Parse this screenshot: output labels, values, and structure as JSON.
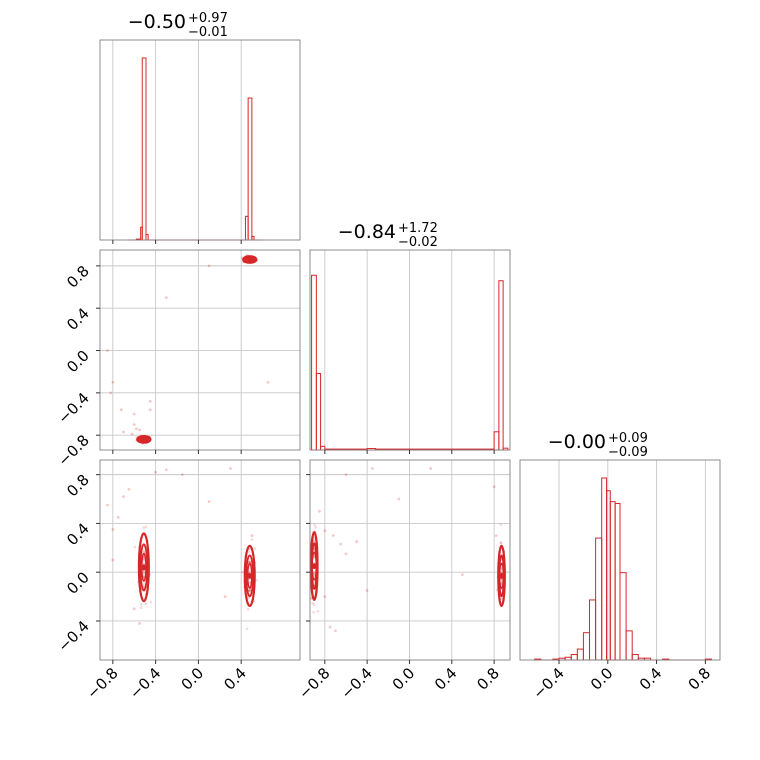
{
  "chart_data": {
    "type": "corner",
    "color": "#d62728",
    "parameters": [
      {
        "title": {
          "main": "−0.50",
          "upper": "+0.97",
          "lower": "−0.01"
        },
        "range": [
          -0.92,
          0.95
        ],
        "ticks": [
          -0.8,
          -0.4,
          0.0,
          0.4
        ],
        "tick_labels": [
          "−0.8",
          "−0.4",
          "0.0",
          "0.4"
        ],
        "hist_bins": [
          {
            "x0": -0.66,
            "x1": -0.62,
            "h": 0.0
          },
          {
            "x0": -0.62,
            "x1": -0.58,
            "h": 0.0
          },
          {
            "x0": -0.58,
            "x1": -0.54,
            "h": 0.005
          },
          {
            "x0": -0.54,
            "x1": -0.525,
            "h": 0.07
          },
          {
            "x0": -0.525,
            "x1": -0.49,
            "h": 1.0
          },
          {
            "x0": -0.49,
            "x1": -0.47,
            "h": 0.03
          },
          {
            "x0": -0.47,
            "x1": 0.44,
            "h": 0.0
          },
          {
            "x0": 0.44,
            "x1": 0.465,
            "h": 0.13
          },
          {
            "x0": 0.465,
            "x1": 0.5,
            "h": 0.78
          },
          {
            "x0": 0.5,
            "x1": 0.52,
            "h": 0.02
          },
          {
            "x0": 0.52,
            "x1": 0.6,
            "h": 0.0
          }
        ]
      },
      {
        "title": {
          "main": "−0.84",
          "upper": "+1.72",
          "lower": "−0.02"
        },
        "range": [
          -0.94,
          0.95
        ],
        "ticks": [
          -0.8,
          -0.4,
          0.0,
          0.4,
          0.8
        ],
        "tick_labels": [
          "−0.8",
          "−0.4",
          "0.0",
          "0.4",
          "0.8"
        ],
        "hist_bins": [
          {
            "x0": -0.925,
            "x1": -0.88,
            "h": 0.96
          },
          {
            "x0": -0.88,
            "x1": -0.84,
            "h": 0.42
          },
          {
            "x0": -0.84,
            "x1": -0.8,
            "h": 0.02
          },
          {
            "x0": -0.8,
            "x1": -0.4,
            "h": 0.005
          },
          {
            "x0": -0.4,
            "x1": -0.32,
            "h": 0.008
          },
          {
            "x0": -0.32,
            "x1": 0.8,
            "h": 0.005
          },
          {
            "x0": 0.8,
            "x1": 0.845,
            "h": 0.1
          },
          {
            "x0": 0.845,
            "x1": 0.885,
            "h": 0.93
          },
          {
            "x0": 0.885,
            "x1": 0.93,
            "h": 0.01
          }
        ]
      },
      {
        "title": {
          "main": "−0.00",
          "upper": "+0.09",
          "lower": "−0.09"
        },
        "range": [
          -0.72,
          0.92
        ],
        "ticks": [
          -0.4,
          0.0,
          0.4,
          0.8
        ],
        "tick_labels": [
          "−0.4",
          "0.0",
          "0.4",
          "0.8"
        ],
        "hist_bins": [
          {
            "x0": -0.6,
            "x1": -0.55,
            "h": 0.005
          },
          {
            "x0": -0.55,
            "x1": -0.45,
            "h": 0.0
          },
          {
            "x0": -0.45,
            "x1": -0.4,
            "h": 0.005
          },
          {
            "x0": -0.4,
            "x1": -0.35,
            "h": 0.01
          },
          {
            "x0": -0.35,
            "x1": -0.3,
            "h": 0.015
          },
          {
            "x0": -0.3,
            "x1": -0.25,
            "h": 0.03
          },
          {
            "x0": -0.25,
            "x1": -0.2,
            "h": 0.06
          },
          {
            "x0": -0.2,
            "x1": -0.15,
            "h": 0.15
          },
          {
            "x0": -0.15,
            "x1": -0.1,
            "h": 0.33
          },
          {
            "x0": -0.1,
            "x1": -0.05,
            "h": 0.67
          },
          {
            "x0": -0.05,
            "x1": -0.01,
            "h": 1.0
          },
          {
            "x0": -0.01,
            "x1": 0.02,
            "h": 0.93
          },
          {
            "x0": 0.02,
            "x1": 0.06,
            "h": 0.87
          },
          {
            "x0": 0.06,
            "x1": 0.1,
            "h": 0.86
          },
          {
            "x0": 0.1,
            "x1": 0.15,
            "h": 0.48
          },
          {
            "x0": 0.15,
            "x1": 0.2,
            "h": 0.16
          },
          {
            "x0": 0.2,
            "x1": 0.25,
            "h": 0.03
          },
          {
            "x0": 0.25,
            "x1": 0.3,
            "h": 0.01
          },
          {
            "x0": 0.3,
            "x1": 0.35,
            "h": 0.01
          },
          {
            "x0": 0.35,
            "x1": 0.45,
            "h": 0.0
          },
          {
            "x0": 0.45,
            "x1": 0.5,
            "h": 0.005
          },
          {
            "x0": 0.5,
            "x1": 0.8,
            "h": 0.0
          },
          {
            "x0": 0.8,
            "x1": 0.85,
            "h": 0.005
          }
        ]
      }
    ],
    "pairs": [
      {
        "xi": 0,
        "yi": 1,
        "clusters": [
          {
            "cx": -0.51,
            "cy": -0.84,
            "sx": 0.02,
            "sy": 0.01
          },
          {
            "cx": 0.48,
            "cy": 0.86,
            "sx": 0.02,
            "sy": 0.01
          }
        ],
        "scatter": [
          [
            -0.8,
            -0.3
          ],
          [
            -0.72,
            -0.56
          ],
          [
            -0.6,
            -0.7
          ],
          [
            -0.55,
            -0.75
          ],
          [
            -0.45,
            -0.48
          ],
          [
            -0.3,
            0.5
          ],
          [
            0.1,
            0.8
          ],
          [
            0.65,
            -0.3
          ],
          [
            -0.85,
            0.0
          ],
          [
            -0.7,
            -0.77
          ],
          [
            -0.62,
            -0.79
          ],
          [
            -0.58,
            -0.74
          ],
          [
            -0.45,
            -0.56
          ],
          [
            -0.6,
            -0.6
          ],
          [
            -0.82,
            -0.4
          ]
        ]
      },
      {
        "xi": 0,
        "yi": 2,
        "clusters": [
          {
            "cx": -0.51,
            "cy": 0.04,
            "sx": 0.015,
            "sy": 0.09
          },
          {
            "cx": 0.48,
            "cy": -0.03,
            "sx": 0.015,
            "sy": 0.08
          }
        ],
        "scatter": [
          [
            -0.85,
            0.55
          ],
          [
            -0.8,
            0.35
          ],
          [
            -0.7,
            0.62
          ],
          [
            -0.65,
            0.68
          ],
          [
            -0.4,
            0.82
          ],
          [
            -0.3,
            0.84
          ],
          [
            -0.15,
            0.8
          ],
          [
            0.1,
            0.58
          ],
          [
            0.3,
            0.85
          ],
          [
            0.25,
            -0.2
          ],
          [
            -0.6,
            -0.3
          ],
          [
            -0.55,
            -0.42
          ],
          [
            0.5,
            0.3
          ],
          [
            -0.8,
            0.1
          ],
          [
            -0.75,
            0.45
          ]
        ]
      },
      {
        "xi": 1,
        "yi": 2,
        "clusters": [
          {
            "cx": -0.9,
            "cy": 0.05,
            "sx": 0.01,
            "sy": 0.09
          },
          {
            "cx": 0.87,
            "cy": -0.03,
            "sx": 0.01,
            "sy": 0.08
          }
        ],
        "scatter": [
          [
            -0.85,
            0.5
          ],
          [
            -0.8,
            0.34
          ],
          [
            -0.72,
            0.3
          ],
          [
            -0.65,
            0.23
          ],
          [
            -0.6,
            0.15
          ],
          [
            -0.8,
            -0.2
          ],
          [
            -0.75,
            -0.45
          ],
          [
            -0.7,
            -0.48
          ],
          [
            -0.6,
            0.8
          ],
          [
            -0.35,
            0.85
          ],
          [
            -0.1,
            0.6
          ],
          [
            0.2,
            0.85
          ],
          [
            0.5,
            -0.02
          ],
          [
            0.8,
            0.7
          ],
          [
            0.82,
            0.3
          ],
          [
            -0.5,
            0.25
          ],
          [
            -0.4,
            -0.15
          ]
        ]
      }
    ]
  }
}
